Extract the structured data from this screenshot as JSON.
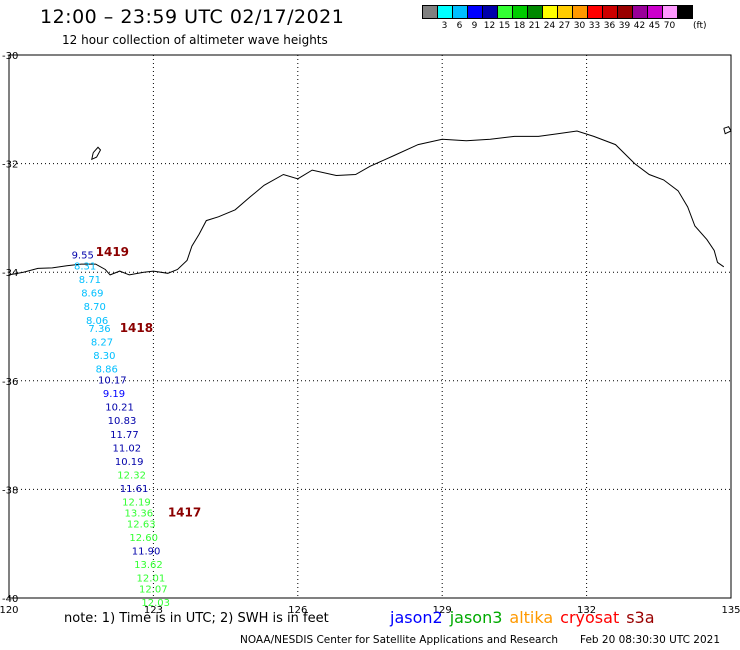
{
  "header": {
    "title": "12:00 – 23:59 UTC 02/17/2021",
    "subtitle": "12 hour collection of altimeter wave heights"
  },
  "legend_scale": {
    "unit": "(ft)",
    "items": [
      {
        "label": "",
        "color": "#808080"
      },
      {
        "label": "3",
        "color": "#00ffff"
      },
      {
        "label": "6",
        "color": "#00bfff"
      },
      {
        "label": "9",
        "color": "#0000ff"
      },
      {
        "label": "12",
        "color": "#0000aa"
      },
      {
        "label": "15",
        "color": "#33ff33"
      },
      {
        "label": "18",
        "color": "#00cc00"
      },
      {
        "label": "21",
        "color": "#008800"
      },
      {
        "label": "24",
        "color": "#ffff00"
      },
      {
        "label": "27",
        "color": "#ffcc00"
      },
      {
        "label": "30",
        "color": "#ff9900"
      },
      {
        "label": "33",
        "color": "#ff0000"
      },
      {
        "label": "36",
        "color": "#cc0000"
      },
      {
        "label": "39",
        "color": "#990000"
      },
      {
        "label": "42",
        "color": "#990099"
      },
      {
        "label": "45",
        "color": "#cc00cc"
      },
      {
        "label": "70",
        "color": "#ff99ff"
      },
      {
        "label": "",
        "color": "#000000"
      }
    ]
  },
  "map_extent": {
    "lon": [
      120,
      135
    ],
    "lat": [
      -40,
      -30
    ]
  },
  "lon_ticks": [
    {
      "label": "120",
      "value": 120
    },
    {
      "label": "123",
      "value": 123
    },
    {
      "label": "126",
      "value": 126
    },
    {
      "label": "129",
      "value": 129
    },
    {
      "label": "132",
      "value": 132
    },
    {
      "label": "135",
      "value": 135
    }
  ],
  "lat_ticks": [
    {
      "label": "-30",
      "value": -30
    },
    {
      "label": "-32",
      "value": -32
    },
    {
      "label": "-34",
      "value": -34
    },
    {
      "label": "-36",
      "value": -36
    },
    {
      "label": "-38",
      "value": -38
    },
    {
      "label": "-40",
      "value": -40
    }
  ],
  "pass_labels": [
    {
      "label": "1419",
      "lon": 121.8,
      "lat": -33.7
    },
    {
      "label": "1418",
      "lon": 122.3,
      "lat": -35.1
    },
    {
      "label": "1417",
      "lon": 123.3,
      "lat": -38.5
    }
  ],
  "observations": [
    {
      "value": "9.55",
      "lon": 121.3,
      "lat": -33.75,
      "color": "#0000aa"
    },
    {
      "value": "8.31",
      "lon": 121.35,
      "lat": -33.95,
      "color": "#00bfff"
    },
    {
      "value": "8.71",
      "lon": 121.45,
      "lat": -34.2,
      "color": "#00bfff"
    },
    {
      "value": "8.69",
      "lon": 121.5,
      "lat": -34.45,
      "color": "#00bfff"
    },
    {
      "value": "8.70",
      "lon": 121.55,
      "lat": -34.7,
      "color": "#00bfff"
    },
    {
      "value": "8.06",
      "lon": 121.6,
      "lat": -34.95,
      "color": "#00bfff"
    },
    {
      "value": "7.36",
      "lon": 121.65,
      "lat": -35.1,
      "color": "#00bfff"
    },
    {
      "value": "8.27",
      "lon": 121.7,
      "lat": -35.35,
      "color": "#00bfff"
    },
    {
      "value": "8.30",
      "lon": 121.75,
      "lat": -35.6,
      "color": "#00bfff"
    },
    {
      "value": "8.86",
      "lon": 121.8,
      "lat": -35.85,
      "color": "#00bfff"
    },
    {
      "value": "10.17",
      "lon": 121.85,
      "lat": -36.05,
      "color": "#0000aa"
    },
    {
      "value": "9.19",
      "lon": 121.95,
      "lat": -36.3,
      "color": "#0000ff"
    },
    {
      "value": "10.21",
      "lon": 122.0,
      "lat": -36.55,
      "color": "#0000aa"
    },
    {
      "value": "10.83",
      "lon": 122.05,
      "lat": -36.8,
      "color": "#0000aa"
    },
    {
      "value": "11.77",
      "lon": 122.1,
      "lat": -37.05,
      "color": "#0000aa"
    },
    {
      "value": "11.02",
      "lon": 122.15,
      "lat": -37.3,
      "color": "#0000aa"
    },
    {
      "value": "10.19",
      "lon": 122.2,
      "lat": -37.55,
      "color": "#0000aa"
    },
    {
      "value": "12.32",
      "lon": 122.25,
      "lat": -37.8,
      "color": "#33ff33"
    },
    {
      "value": "11.61",
      "lon": 122.3,
      "lat": -38.05,
      "color": "#0000aa"
    },
    {
      "value": "12.19",
      "lon": 122.35,
      "lat": -38.3,
      "color": "#33ff33"
    },
    {
      "value": "13.36",
      "lon": 122.4,
      "lat": -38.5,
      "color": "#33ff33"
    },
    {
      "value": "12.63",
      "lon": 122.45,
      "lat": -38.7,
      "color": "#33ff33"
    },
    {
      "value": "12.60",
      "lon": 122.5,
      "lat": -38.95,
      "color": "#33ff33"
    },
    {
      "value": "11.90",
      "lon": 122.55,
      "lat": -39.2,
      "color": "#0000aa"
    },
    {
      "value": "13.62",
      "lon": 122.6,
      "lat": -39.45,
      "color": "#33ff33"
    },
    {
      "value": "12.01",
      "lon": 122.65,
      "lat": -39.7,
      "color": "#33ff33"
    },
    {
      "value": "12.07",
      "lon": 122.7,
      "lat": -39.9,
      "color": "#33ff33"
    },
    {
      "value": "12.03",
      "lon": 122.75,
      "lat": -40.15,
      "color": "#33ff33"
    }
  ],
  "coastline": [
    [
      120.0,
      -34.05
    ],
    [
      120.3,
      -34.0
    ],
    [
      120.6,
      -33.93
    ],
    [
      120.9,
      -33.92
    ],
    [
      121.2,
      -33.88
    ],
    [
      121.5,
      -33.85
    ],
    [
      121.8,
      -33.85
    ],
    [
      122.0,
      -33.95
    ],
    [
      122.1,
      -34.05
    ],
    [
      122.3,
      -33.98
    ],
    [
      122.5,
      -34.05
    ],
    [
      122.8,
      -34.0
    ],
    [
      123.0,
      -33.98
    ],
    [
      123.3,
      -34.02
    ],
    [
      123.5,
      -33.95
    ],
    [
      123.7,
      -33.78
    ],
    [
      123.8,
      -33.52
    ],
    [
      123.95,
      -33.3
    ],
    [
      124.1,
      -33.05
    ],
    [
      124.35,
      -32.98
    ],
    [
      124.7,
      -32.85
    ],
    [
      125.0,
      -32.62
    ],
    [
      125.3,
      -32.4
    ],
    [
      125.7,
      -32.2
    ],
    [
      126.0,
      -32.28
    ],
    [
      126.3,
      -32.12
    ],
    [
      126.8,
      -32.22
    ],
    [
      127.2,
      -32.2
    ],
    [
      127.5,
      -32.05
    ],
    [
      128.0,
      -31.85
    ],
    [
      128.5,
      -31.65
    ],
    [
      129.0,
      -31.55
    ],
    [
      129.5,
      -31.58
    ],
    [
      130.0,
      -31.55
    ],
    [
      130.5,
      -31.5
    ],
    [
      131.0,
      -31.5
    ],
    [
      131.4,
      -31.45
    ],
    [
      131.8,
      -31.4
    ],
    [
      132.15,
      -31.5
    ],
    [
      132.6,
      -31.65
    ],
    [
      133.0,
      -32.0
    ],
    [
      133.3,
      -32.2
    ],
    [
      133.6,
      -32.3
    ],
    [
      133.9,
      -32.5
    ],
    [
      134.1,
      -32.8
    ],
    [
      134.25,
      -33.15
    ],
    [
      134.5,
      -33.4
    ],
    [
      134.65,
      -33.6
    ],
    [
      134.72,
      -33.82
    ],
    [
      134.85,
      -33.9
    ]
  ],
  "islands": [
    [
      [
        121.75,
        -31.8
      ],
      [
        121.85,
        -31.7
      ],
      [
        121.9,
        -31.75
      ],
      [
        121.82,
        -31.88
      ],
      [
        121.72,
        -31.92
      ],
      [
        121.75,
        -31.8
      ]
    ],
    [
      [
        134.85,
        -31.35
      ],
      [
        134.95,
        -31.32
      ],
      [
        135.0,
        -31.4
      ],
      [
        134.88,
        -31.45
      ],
      [
        134.85,
        -31.35
      ]
    ]
  ],
  "note": "note:  1) Time is in UTC; 2) SWH is in feet",
  "satellites": [
    {
      "name": "jason2",
      "color": "#0000ff"
    },
    {
      "name": "jason3",
      "color": "#00aa00"
    },
    {
      "name": "altika",
      "color": "#ff9900"
    },
    {
      "name": "cryosat",
      "color": "#ff0000"
    },
    {
      "name": "s3a",
      "color": "#990000"
    }
  ],
  "credit": "NOAA/NESDIS Center for Satellite Applications and Research",
  "timestamp": "Feb 20 08:30:30 UTC 2021"
}
